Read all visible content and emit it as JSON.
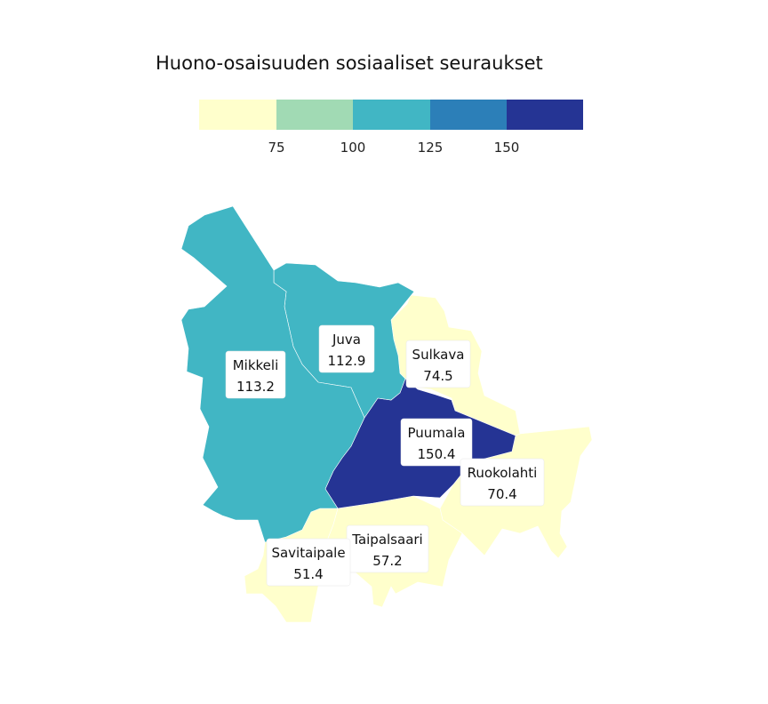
{
  "title": "Huono-osaisuuden sosiaaliset seuraukset",
  "legend": {
    "breaks": [
      75,
      100,
      125,
      150
    ],
    "tick_labels": [
      "75",
      "100",
      "125",
      "150"
    ],
    "colors": [
      "#ffffcc",
      "#a1dab4",
      "#41b6c4",
      "#2c7fb8",
      "#253494"
    ]
  },
  "chart_data": {
    "type": "choropleth",
    "title": "Huono-osaisuuden sosiaaliset seuraukset",
    "regions": [
      {
        "name": "Mikkeli",
        "value_label": "113.2",
        "value": 113.2,
        "color": "#41b6c4"
      },
      {
        "name": "Juva",
        "value_label": "112.9",
        "value": 112.9,
        "color": "#41b6c4"
      },
      {
        "name": "Sulkava",
        "value_label": "74.5",
        "value": 74.5,
        "color": "#ffffcc"
      },
      {
        "name": "Puumala",
        "value_label": "150.4",
        "value": 150.4,
        "color": "#253494"
      },
      {
        "name": "Ruokolahti",
        "value_label": "70.4",
        "value": 70.4,
        "color": "#ffffcc"
      },
      {
        "name": "Taipalsaari",
        "value_label": "57.2",
        "value": 57.2,
        "color": "#ffffcc"
      },
      {
        "name": "Savitaipale",
        "value_label": "51.4",
        "value": 51.4,
        "color": "#ffffcc"
      }
    ]
  }
}
